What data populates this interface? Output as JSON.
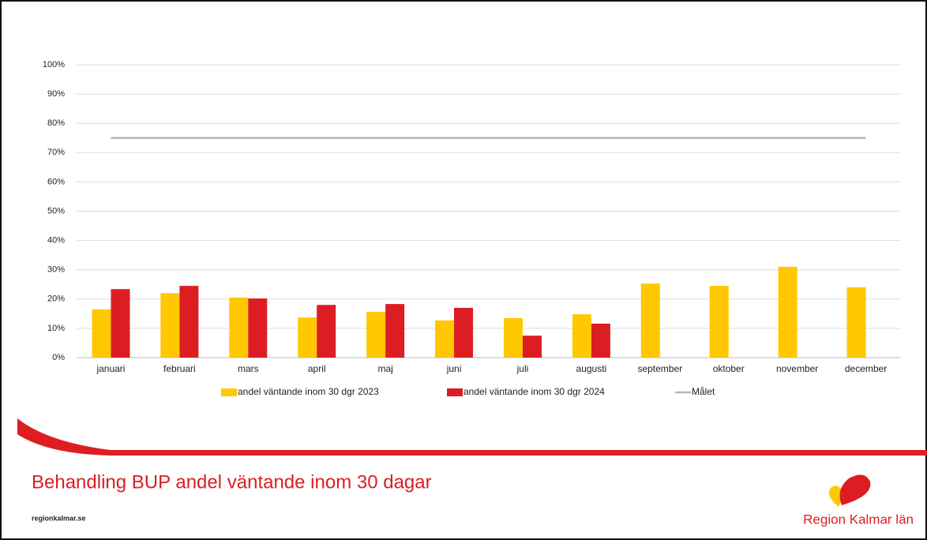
{
  "chart_data": {
    "type": "bar",
    "title": "Behandling BUP andel väntande inom 30 dagar",
    "categories": [
      "januari",
      "februari",
      "mars",
      "april",
      "maj",
      "juni",
      "juli",
      "augusti",
      "september",
      "oktober",
      "november",
      "december"
    ],
    "series": [
      {
        "name": "andel väntande inom 30 dgr 2023",
        "color": "#ffc800",
        "values": [
          16.5,
          22,
          20.5,
          13.7,
          15.6,
          12.7,
          13.5,
          14.8,
          25.3,
          24.5,
          31,
          24
        ]
      },
      {
        "name": "andel väntande inom 30 dgr 2024",
        "color": "#dc1e23",
        "values": [
          23.4,
          24.5,
          20.2,
          18,
          18.3,
          17,
          7.5,
          11.6,
          null,
          null,
          null,
          null
        ]
      },
      {
        "name": "Målet",
        "type": "line",
        "color": "#bfb3ad",
        "values": [
          75,
          75,
          75,
          75,
          75,
          75,
          75,
          75,
          75,
          75,
          75,
          75
        ]
      }
    ],
    "ylim": [
      0,
      100
    ],
    "yticks": [
      {
        "value": 0,
        "label": "0%"
      },
      {
        "value": 10,
        "label": "10%"
      },
      {
        "value": 20,
        "label": "20%"
      },
      {
        "value": 30,
        "label": "30%"
      },
      {
        "value": 40,
        "label": "40%"
      },
      {
        "value": 50,
        "label": "50%"
      },
      {
        "value": 60,
        "label": "60%"
      },
      {
        "value": 70,
        "label": "70%"
      },
      {
        "value": 80,
        "label": "80%"
      },
      {
        "value": 90,
        "label": "90%"
      },
      {
        "value": 100,
        "label": "100%"
      }
    ],
    "grid": true,
    "legend": "bottom"
  },
  "footer": {
    "website": "regionkalmar.se",
    "brand": "Region Kalmar län"
  }
}
